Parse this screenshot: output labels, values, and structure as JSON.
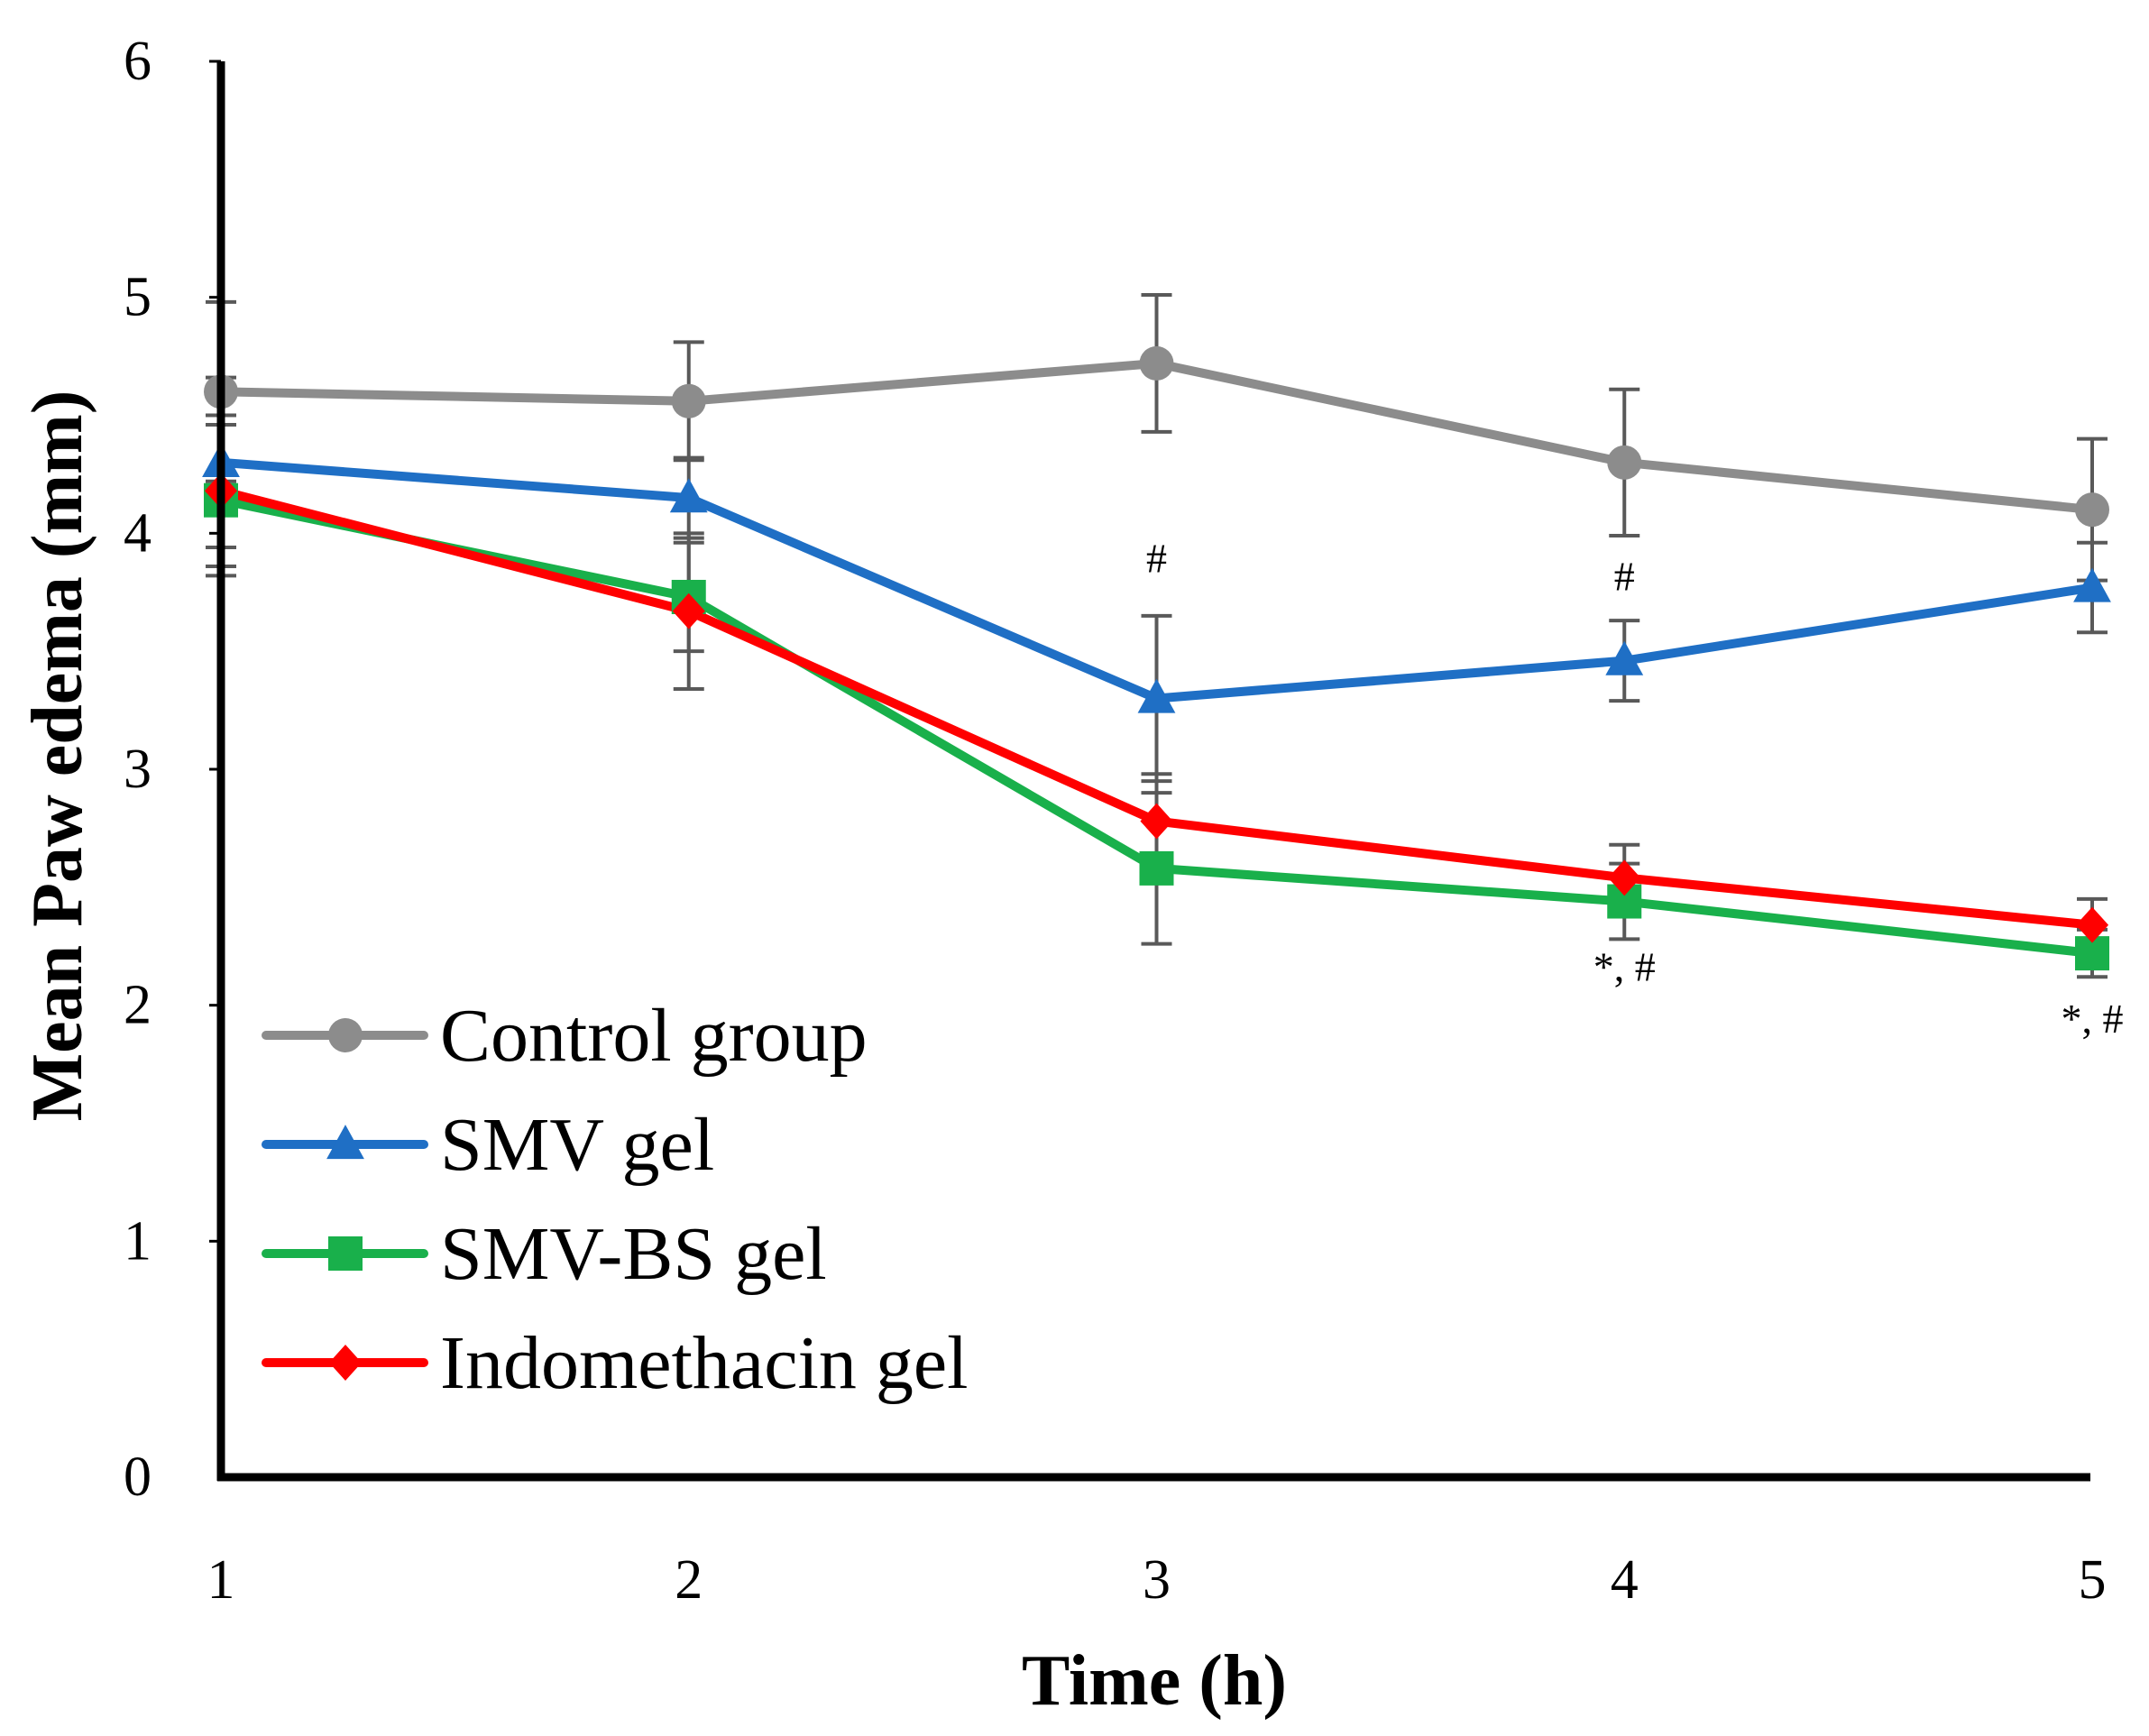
{
  "chart_data": {
    "type": "line",
    "title": "",
    "xlabel": "Time (h)",
    "ylabel": "Mean Paw edema (mm)",
    "x": [
      1,
      2,
      3,
      4,
      5
    ],
    "x_tick_labels": [
      "1",
      "2",
      "3",
      "4",
      "5"
    ],
    "y_tick_labels": [
      "0",
      "1",
      "2",
      "3",
      "4",
      "5",
      "6"
    ],
    "ylim": [
      0,
      6
    ],
    "xlim": [
      1,
      5
    ],
    "grid": false,
    "legend_position": "bottom-left",
    "series": [
      {
        "name": "Control group",
        "color": "#8c8c8c",
        "marker": "circle",
        "values": [
          4.6,
          4.56,
          4.72,
          4.3,
          4.1
        ],
        "errors": [
          0.38,
          0.25,
          0.29,
          0.31,
          0.3
        ]
      },
      {
        "name": "SMV gel",
        "color": "#1f6fc5",
        "marker": "triangle",
        "values": [
          4.3,
          4.15,
          3.3,
          3.46,
          3.77
        ],
        "errors": [
          0.36,
          0.17,
          0.35,
          0.17,
          0.19
        ]
      },
      {
        "name": "SMV-BS gel",
        "color": "#19b04b",
        "marker": "square",
        "values": [
          4.14,
          3.73,
          2.58,
          2.44,
          2.22
        ],
        "errors": [
          0.32,
          0.23,
          0.32,
          0.16,
          0.1
        ]
      },
      {
        "name": "Indomethacin gel",
        "color": "#ff0000",
        "marker": "diamond",
        "values": [
          4.18,
          3.67,
          2.78,
          2.54,
          2.34
        ],
        "errors": [
          0.32,
          0.33,
          0.2,
          0.14,
          0.11
        ]
      }
    ],
    "annotations": [
      {
        "x": 3,
        "text": "#"
      },
      {
        "x": 4,
        "text": "#"
      },
      {
        "x": 4,
        "text": "*, #"
      },
      {
        "x": 5,
        "text": "*, #"
      }
    ]
  }
}
